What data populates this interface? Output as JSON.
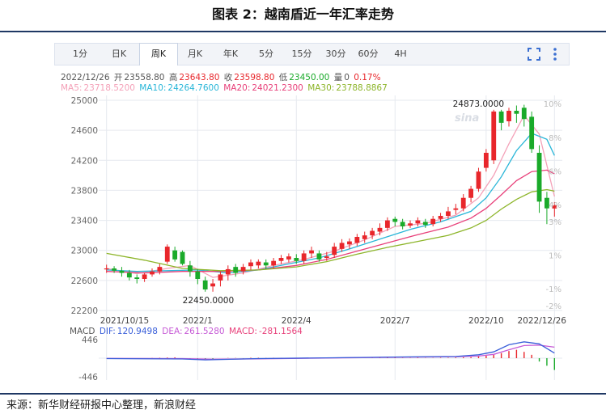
{
  "figure": {
    "title": "图表 2：越南盾近一年汇率走势",
    "source": "来源：新华财经研报中心整理，新浪财经",
    "watermark": "sina"
  },
  "toolbar": {
    "tabs": [
      "1分",
      "日K",
      "周K",
      "月K",
      "年K",
      "5分",
      "15分",
      "30分",
      "60分",
      "4H"
    ],
    "active_tab": "周K",
    "icons": [
      "fullscreen-icon",
      "more-icon"
    ]
  },
  "quote": {
    "date": "2022/12/26",
    "open_label": "开",
    "open": "23558.80",
    "high_label": "高",
    "high": "23643.80",
    "close_label": "收",
    "close": "23598.80",
    "low_label": "低",
    "low": "23450.00",
    "volume_label": "量",
    "volume": "0",
    "change": "0.17%"
  },
  "ma_legend": [
    {
      "label": "MA5:",
      "value": "23718.5200",
      "color": "#f4a1b8"
    },
    {
      "label": "MA10:",
      "value": "24264.7600",
      "color": "#29b6d8"
    },
    {
      "label": "MA20:",
      "value": "24021.2300",
      "color": "#e8407a"
    },
    {
      "label": "MA30:",
      "value": "23788.8867",
      "color": "#8db52a"
    }
  ],
  "macd_legend": {
    "title": "MACD",
    "items": [
      {
        "label": "DIF:",
        "value": "120.9498",
        "color": "#3a5fd9"
      },
      {
        "label": "DEA:",
        "value": "261.5280",
        "color": "#c65ad6"
      },
      {
        "label": "MACD:",
        "value": "-281.1564",
        "color": "#e8407a"
      }
    ]
  },
  "colors": {
    "up": "#e8262b",
    "down": "#1aaa2a",
    "grid": "#e6e9ef",
    "axis_text": "#666666"
  },
  "chart_data": {
    "type": "candlestick",
    "y_ticks": [
      "25000",
      "24600",
      "24200",
      "23800",
      "23400",
      "23000",
      "22600",
      "22200"
    ],
    "y_tick_values": [
      25000,
      24600,
      24200,
      23800,
      23400,
      23000,
      22600,
      22200
    ],
    "ylim": [
      22200,
      25000
    ],
    "pct_ticks": [
      "10%",
      "8%",
      "6%",
      "4%",
      "3%",
      "1%",
      "-1%",
      "-2%"
    ],
    "pct_tick_values": [
      10,
      8,
      6,
      4,
      3,
      1,
      -1,
      -2
    ],
    "pct_lim": [
      -2.3,
      10.2
    ],
    "x_ticks": [
      {
        "label": "2021/10/15",
        "index": 0
      },
      {
        "label": "2022/1",
        "index": 12
      },
      {
        "label": "2022/4",
        "index": 25
      },
      {
        "label": "2022/7",
        "index": 38
      },
      {
        "label": "2022/10",
        "index": 50
      },
      {
        "label": "2022/12/26",
        "index": 59
      }
    ],
    "annotations": [
      {
        "text": "24873.0000",
        "index": 52,
        "value": 24873
      },
      {
        "text": "22450.0000",
        "index": 13,
        "value": 22450
      }
    ],
    "candles": [
      [
        22750,
        22760,
        22700,
        22810
      ],
      [
        22760,
        22730,
        22700,
        22790
      ],
      [
        22730,
        22700,
        22650,
        22780
      ],
      [
        22700,
        22640,
        22600,
        22740
      ],
      [
        22640,
        22620,
        22560,
        22680
      ],
      [
        22620,
        22680,
        22580,
        22700
      ],
      [
        22680,
        22720,
        22650,
        22760
      ],
      [
        22720,
        22780,
        22680,
        22820
      ],
      [
        22850,
        23050,
        22820,
        23080
      ],
      [
        23000,
        22880,
        22850,
        23050
      ],
      [
        22980,
        22820,
        22800,
        23000
      ],
      [
        22800,
        22720,
        22650,
        22860
      ],
      [
        22720,
        22620,
        22550,
        22750
      ],
      [
        22600,
        22480,
        22450,
        22650
      ],
      [
        22520,
        22560,
        22450,
        22620
      ],
      [
        22600,
        22680,
        22520,
        22720
      ],
      [
        22680,
        22750,
        22600,
        22800
      ],
      [
        22780,
        22700,
        22650,
        22820
      ],
      [
        22720,
        22780,
        22680,
        22820
      ],
      [
        22790,
        22840,
        22740,
        22880
      ],
      [
        22800,
        22850,
        22760,
        22880
      ],
      [
        22840,
        22800,
        22750,
        22880
      ],
      [
        22800,
        22860,
        22760,
        22900
      ],
      [
        22860,
        22900,
        22820,
        22940
      ],
      [
        22880,
        22920,
        22840,
        22960
      ],
      [
        22900,
        22860,
        22820,
        22950
      ],
      [
        22860,
        22960,
        22820,
        23000
      ],
      [
        22960,
        23000,
        22900,
        23050
      ],
      [
        22960,
        22880,
        22850,
        23000
      ],
      [
        22900,
        22920,
        22860,
        22980
      ],
      [
        22940,
        23050,
        22900,
        23100
      ],
      [
        23020,
        23100,
        22980,
        23150
      ],
      [
        23080,
        23120,
        23020,
        23160
      ],
      [
        23100,
        23180,
        23060,
        23220
      ],
      [
        23150,
        23200,
        23100,
        23250
      ],
      [
        23200,
        23260,
        23150,
        23300
      ],
      [
        23250,
        23300,
        23200,
        23360
      ],
      [
        23300,
        23400,
        23260,
        23440
      ],
      [
        23420,
        23380,
        23320,
        23450
      ],
      [
        23380,
        23320,
        23280,
        23420
      ],
      [
        23330,
        23360,
        23300,
        23400
      ],
      [
        23360,
        23400,
        23320,
        23440
      ],
      [
        23380,
        23340,
        23300,
        23420
      ],
      [
        23350,
        23420,
        23320,
        23460
      ],
      [
        23420,
        23460,
        23380,
        23500
      ],
      [
        23460,
        23520,
        23420,
        23580
      ],
      [
        23540,
        23560,
        23480,
        23620
      ],
      [
        23560,
        23700,
        23520,
        23750
      ],
      [
        23700,
        23820,
        23640,
        23860
      ],
      [
        23820,
        24050,
        23780,
        24100
      ],
      [
        24100,
        24300,
        24050,
        24350
      ],
      [
        24200,
        24850,
        24150,
        24873
      ],
      [
        24850,
        24700,
        24600,
        24873
      ],
      [
        24720,
        24860,
        24650,
        24900
      ],
      [
        24860,
        24820,
        24700,
        24930
      ],
      [
        24900,
        24750,
        24650,
        24940
      ],
      [
        24780,
        24350,
        24300,
        24850
      ],
      [
        24300,
        23650,
        23500,
        24400
      ],
      [
        23700,
        23560,
        23350,
        23780
      ],
      [
        23558.8,
        23598.8,
        23450,
        23643.8
      ]
    ],
    "ma": {
      "MA5": [
        [
          0,
          22760
        ],
        [
          4,
          22690
        ],
        [
          8,
          22760
        ],
        [
          11,
          22800
        ],
        [
          14,
          22640
        ],
        [
          18,
          22700
        ],
        [
          22,
          22800
        ],
        [
          26,
          22880
        ],
        [
          30,
          22990
        ],
        [
          34,
          23140
        ],
        [
          38,
          23320
        ],
        [
          42,
          23360
        ],
        [
          46,
          23470
        ],
        [
          49,
          23700
        ],
        [
          51,
          24000
        ],
        [
          53,
          24420
        ],
        [
          55,
          24800
        ],
        [
          57,
          24550
        ],
        [
          59,
          23718
        ]
      ],
      "MA10": [
        [
          0,
          22740
        ],
        [
          4,
          22720
        ],
        [
          8,
          22730
        ],
        [
          12,
          22740
        ],
        [
          16,
          22700
        ],
        [
          20,
          22740
        ],
        [
          24,
          22820
        ],
        [
          28,
          22900
        ],
        [
          32,
          23020
        ],
        [
          36,
          23150
        ],
        [
          40,
          23280
        ],
        [
          44,
          23380
        ],
        [
          48,
          23520
        ],
        [
          50,
          23700
        ],
        [
          52,
          23980
        ],
        [
          54,
          24330
        ],
        [
          56,
          24560
        ],
        [
          58,
          24480
        ],
        [
          59,
          24264
        ]
      ],
      "MA20": [
        [
          0,
          22720
        ],
        [
          5,
          22700
        ],
        [
          10,
          22720
        ],
        [
          15,
          22720
        ],
        [
          20,
          22740
        ],
        [
          25,
          22800
        ],
        [
          29,
          22880
        ],
        [
          33,
          22990
        ],
        [
          37,
          23100
        ],
        [
          41,
          23210
        ],
        [
          45,
          23310
        ],
        [
          48,
          23430
        ],
        [
          50,
          23560
        ],
        [
          52,
          23740
        ],
        [
          54,
          23930
        ],
        [
          56,
          24050
        ],
        [
          58,
          24070
        ],
        [
          59,
          24021
        ]
      ],
      "MA30": [
        [
          0,
          22960
        ],
        [
          5,
          22870
        ],
        [
          10,
          22760
        ],
        [
          15,
          22730
        ],
        [
          20,
          22740
        ],
        [
          25,
          22780
        ],
        [
          29,
          22850
        ],
        [
          33,
          22950
        ],
        [
          37,
          23040
        ],
        [
          41,
          23120
        ],
        [
          45,
          23200
        ],
        [
          48,
          23300
        ],
        [
          50,
          23400
        ],
        [
          52,
          23550
        ],
        [
          54,
          23680
        ],
        [
          56,
          23780
        ],
        [
          58,
          23810
        ],
        [
          59,
          23789
        ]
      ]
    },
    "macd": {
      "ylim": [
        -520,
        520
      ],
      "y_ticks": [
        "446",
        "-446"
      ],
      "y_tick_values": [
        446,
        -446
      ],
      "dif": [
        [
          0,
          -10
        ],
        [
          10,
          -20
        ],
        [
          13,
          -40
        ],
        [
          20,
          -10
        ],
        [
          30,
          10
        ],
        [
          40,
          30
        ],
        [
          46,
          40
        ],
        [
          49,
          80
        ],
        [
          51,
          150
        ],
        [
          53,
          320
        ],
        [
          55,
          390
        ],
        [
          57,
          340
        ],
        [
          59,
          121
        ]
      ],
      "dea": [
        [
          0,
          -5
        ],
        [
          10,
          -10
        ],
        [
          14,
          -25
        ],
        [
          20,
          -15
        ],
        [
          30,
          5
        ],
        [
          40,
          25
        ],
        [
          46,
          35
        ],
        [
          49,
          50
        ],
        [
          51,
          90
        ],
        [
          53,
          200
        ],
        [
          55,
          300
        ],
        [
          57,
          310
        ],
        [
          59,
          262
        ]
      ],
      "hist": [
        0,
        -5,
        -5,
        -10,
        -10,
        -10,
        5,
        10,
        15,
        20,
        -10,
        -15,
        -25,
        -40,
        -20,
        0,
        5,
        5,
        -5,
        10,
        10,
        5,
        10,
        10,
        5,
        10,
        10,
        10,
        0,
        5,
        10,
        15,
        10,
        10,
        10,
        15,
        15,
        20,
        10,
        5,
        5,
        10,
        5,
        5,
        10,
        10,
        15,
        20,
        25,
        40,
        60,
        80,
        120,
        170,
        200,
        150,
        80,
        -80,
        -180,
        -281
      ]
    }
  }
}
